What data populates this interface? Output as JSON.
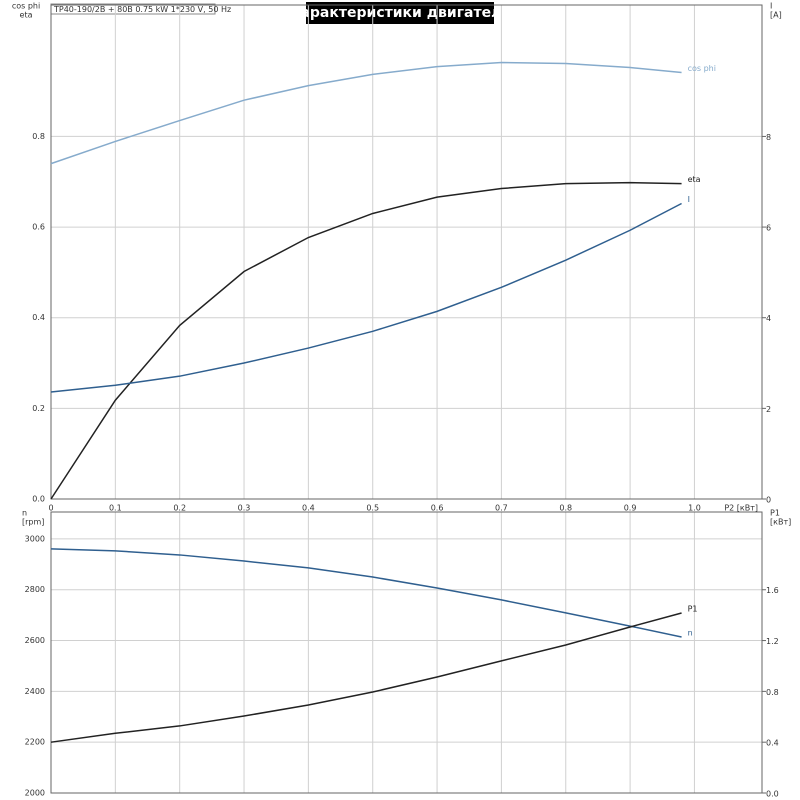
{
  "header": {
    "title": "Характеристики двигателя",
    "info": "TP40-190/2B + 80B  0.75 kW  1*230 V, 50 Hz"
  },
  "chart_data": [
    {
      "type": "line",
      "xlabel": "P2 [кВт]",
      "ylabel": [
        "cos phi",
        "eta"
      ],
      "y2label": [
        "I",
        "[A]"
      ],
      "x": [
        0,
        0.1,
        0.2,
        0.3,
        0.4,
        0.5,
        0.6,
        0.7,
        0.8,
        0.9,
        0.98
      ],
      "xlim": [
        0,
        1.105
      ],
      "xticks": [
        0,
        0.1,
        0.2,
        0.3,
        0.4,
        0.5,
        0.6,
        0.7,
        0.8,
        0.9,
        {
          "value": 1,
          "label": "1.0"
        }
      ],
      "ylim": [
        0,
        1.09
      ],
      "yticks": [
        {
          "value": 0,
          "label": "0.0"
        },
        0.2,
        0.4,
        0.6,
        0.8
      ],
      "y2lim": [
        0,
        10.9
      ],
      "y2ticks": [
        0,
        2,
        4,
        6,
        8
      ],
      "grid": true,
      "series": [
        {
          "name": "cos phi",
          "color": "#86abcc",
          "values": [
            0.74,
            0.789,
            0.835,
            0.88,
            0.912,
            0.937,
            0.954,
            0.963,
            0.961,
            0.952,
            0.941
          ]
        },
        {
          "name": "eta",
          "color": "#222222",
          "values": [
            0,
            0.218,
            0.383,
            0.502,
            0.577,
            0.63,
            0.666,
            0.685,
            0.696,
            0.698,
            0.696
          ]
        },
        {
          "name": "I",
          "color": "#2f5f8f",
          "axis": "y2",
          "values": [
            2.36,
            2.51,
            2.71,
            3.0,
            3.33,
            3.7,
            4.14,
            4.67,
            5.27,
            5.93,
            6.52
          ]
        }
      ]
    },
    {
      "type": "line",
      "ylabel": [
        "n",
        "[rpm]"
      ],
      "y2label": [
        "P1",
        "[кВт]"
      ],
      "x": [
        0,
        0.1,
        0.2,
        0.3,
        0.4,
        0.5,
        0.6,
        0.7,
        0.8,
        0.9,
        0.98
      ],
      "xlim": [
        0,
        1.105
      ],
      "ylim": [
        2000,
        3106
      ],
      "yticks": [
        2000,
        2200,
        2400,
        2600,
        2800,
        3000
      ],
      "y2lim": [
        0,
        2.212
      ],
      "y2ticks": [
        {
          "value": 0,
          "label": "0.0"
        },
        0.4,
        0.8,
        1.2,
        1.6
      ],
      "grid": true,
      "series": [
        {
          "name": "n",
          "color": "#2f5f8f",
          "values": [
            2961,
            2953,
            2937,
            2913,
            2886,
            2850,
            2807,
            2760,
            2709,
            2657,
            2614
          ]
        },
        {
          "name": "P1",
          "color": "#222222",
          "axis": "y2",
          "values": [
            0.4,
            0.47,
            0.528,
            0.606,
            0.693,
            0.795,
            0.913,
            1.04,
            1.165,
            1.307,
            1.417
          ]
        }
      ]
    }
  ]
}
